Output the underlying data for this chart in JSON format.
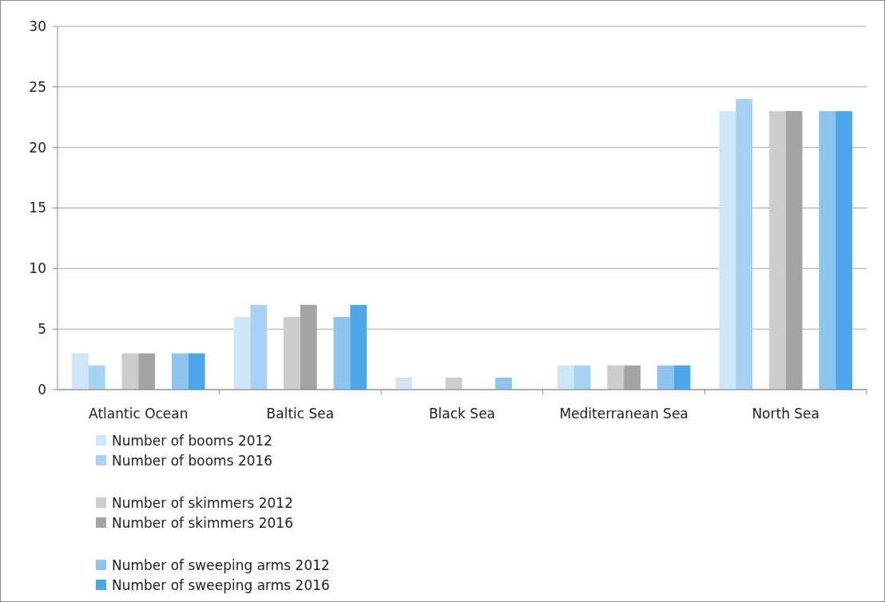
{
  "chart_data": {
    "type": "bar",
    "categories": [
      "Atlantic Ocean",
      "Baltic Sea",
      "Black Sea",
      "Mediterranean Sea",
      "North Sea"
    ],
    "series": [
      {
        "name": "Number of booms 2012",
        "color": "#cfe6f9",
        "values": [
          3,
          6,
          1,
          2,
          23
        ]
      },
      {
        "name": "Number of booms 2016",
        "color": "#a6d3f4",
        "values": [
          2,
          7,
          0,
          2,
          24
        ]
      },
      {
        "name": "Number of skimmers 2012",
        "color": "#cdcdcd",
        "values": [
          3,
          6,
          1,
          2,
          23
        ]
      },
      {
        "name": "Number of skimmers 2016",
        "color": "#a3a3a3",
        "values": [
          3,
          7,
          0,
          2,
          23
        ]
      },
      {
        "name": "Number of sweeping arms 2012",
        "color": "#8cc6f0",
        "values": [
          3,
          6,
          1,
          2,
          23
        ]
      },
      {
        "name": "Number of sweeping arms 2016",
        "color": "#4ea6ea",
        "values": [
          3,
          7,
          0,
          2,
          23
        ]
      }
    ],
    "ylim": [
      0,
      30
    ],
    "yticks": [
      0,
      5,
      10,
      15,
      20,
      25,
      30
    ],
    "grid": "y",
    "legend": "bottom left"
  }
}
